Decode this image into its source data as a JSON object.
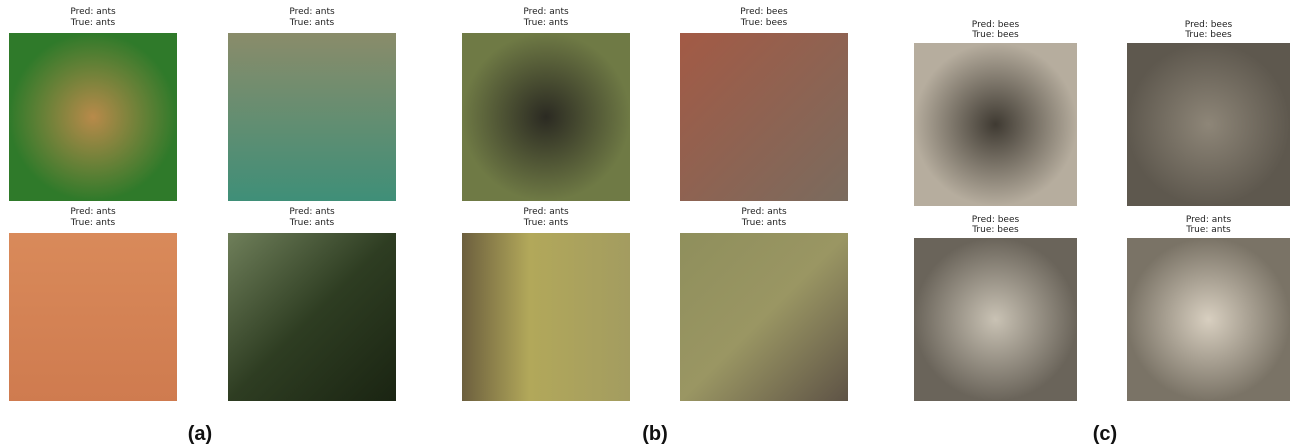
{
  "panels": [
    {
      "label": "(a)",
      "images": [
        {
          "pred": "Pred: ants",
          "true": "True: ants"
        },
        {
          "pred": "Pred: ants",
          "true": "True: ants"
        },
        {
          "pred": "Pred: ants",
          "true": "True: ants"
        },
        {
          "pred": "Pred: ants",
          "true": "True: ants"
        }
      ]
    },
    {
      "label": "(b)",
      "images": [
        {
          "pred": "Pred: ants",
          "true": "True: ants"
        },
        {
          "pred": "Pred: bees",
          "true": "True: bees"
        },
        {
          "pred": "Pred: ants",
          "true": "True: ants"
        },
        {
          "pred": "Pred: ants",
          "true": "True: ants"
        }
      ]
    },
    {
      "label": "(c)",
      "images": [
        {
          "pred": "Pred: bees",
          "true": "True: bees"
        },
        {
          "pred": "Pred: bees",
          "true": "True: bees"
        },
        {
          "pred": "Pred: bees",
          "true": "True: bees"
        },
        {
          "pred": "Pred: ants",
          "true": "True: ants"
        }
      ]
    }
  ]
}
